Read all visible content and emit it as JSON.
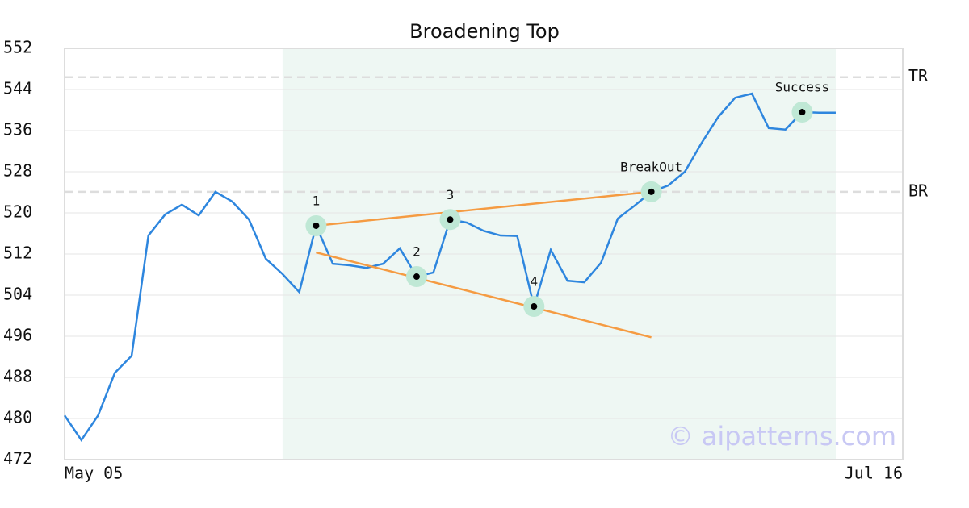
{
  "chart_data": {
    "type": "line",
    "title": "Broadening Top",
    "categories": [
      "May 05",
      null,
      null,
      null,
      null,
      null,
      null,
      null,
      null,
      null,
      null,
      null,
      null,
      null,
      null,
      null,
      null,
      null,
      null,
      null,
      null,
      null,
      null,
      null,
      null,
      null,
      null,
      null,
      null,
      null,
      null,
      null,
      null,
      null,
      null,
      null,
      null,
      null,
      null,
      null,
      null,
      null,
      null,
      null,
      null,
      null,
      null,
      null,
      null,
      null,
      "Jul 16"
    ],
    "series": [
      {
        "color": "#2e86de",
        "values": [
          480.6,
          475.8,
          480.6,
          488.9,
          492.2,
          515.6,
          519.7,
          521.6,
          519.5,
          524.1,
          522.2,
          518.7,
          511.1,
          508.1,
          504.6,
          517.5,
          510.1,
          509.8,
          509.3,
          510.1,
          513.1,
          507.6,
          508.4,
          518.7,
          518.1,
          516.5,
          515.6,
          515.5,
          501.8,
          512.8,
          506.8,
          506.5,
          510.3,
          518.9,
          521.4,
          524.1,
          525.3,
          528.0,
          533.6,
          538.7,
          542.4,
          543.2,
          536.5,
          536.2,
          539.6,
          539.5,
          539.5,
          null,
          null,
          null,
          null
        ]
      }
    ],
    "ylim": [
      472,
      552
    ],
    "yticks": [
      472,
      480,
      488,
      496,
      504,
      512,
      520,
      528,
      536,
      544,
      552
    ],
    "grid": true,
    "highlight": {
      "from": 13,
      "to": 46,
      "color": "#eef7f3"
    },
    "reference_lines": [
      {
        "label": "TR",
        "value": 546.4
      },
      {
        "label": "BR",
        "value": 524.1
      }
    ],
    "trendlines": [
      {
        "x": [
          15,
          35
        ],
        "y": [
          517.5,
          524.1
        ],
        "color": "#f59b42"
      },
      {
        "x": [
          15,
          35
        ],
        "y": [
          512.3,
          495.8
        ],
        "color": "#f59b42"
      }
    ],
    "points": [
      {
        "label": "1",
        "index": 15
      },
      {
        "label": "2",
        "index": 21
      },
      {
        "label": "3",
        "index": 23
      },
      {
        "label": "4",
        "index": 28
      },
      {
        "label": "BreakOut",
        "index": 35
      },
      {
        "label": "Success",
        "index": 44
      }
    ],
    "watermark": "© aipatterns.com"
  }
}
